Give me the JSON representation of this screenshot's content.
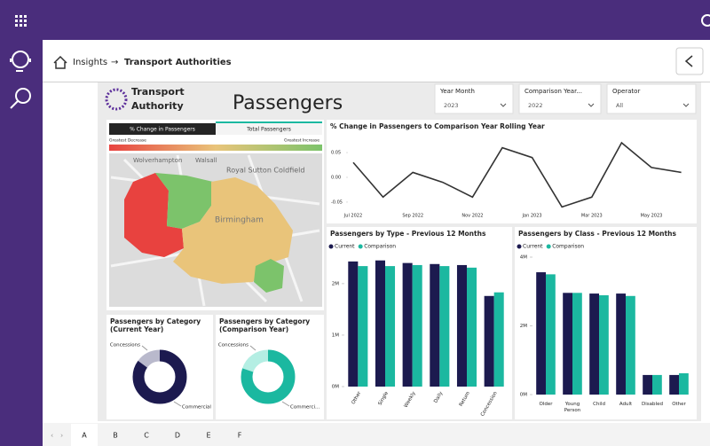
{
  "header": {
    "breadcrumb": [
      "Insights",
      "Transport Authorities"
    ]
  },
  "dashboard": {
    "logo": [
      "Transport",
      "Authority"
    ],
    "title": "Passengers",
    "filters": [
      {
        "label": "Year Month",
        "value": "2023"
      },
      {
        "label": "Comparison Year...",
        "value": "2022"
      },
      {
        "label": "Operator",
        "value": "All"
      }
    ],
    "map": {
      "tabs": [
        "% Change in Passengers",
        "Total Passengers"
      ],
      "legend": [
        "Greatest Decrease",
        "Greatest Increase"
      ],
      "places": [
        "Wolverhampton",
        "Walsall",
        "Royal Sutton Coldfield",
        "Birmingham"
      ]
    }
  },
  "chart_data": [
    {
      "type": "line",
      "title": "% Change in Passengers to Comparison Year Rolling Year",
      "categories": [
        "Jul 2022",
        null,
        "Sep 2022",
        null,
        "Nov 2022",
        null,
        "Jan 2023",
        null,
        "Mar 2023",
        null,
        "May 2023",
        null
      ],
      "values": [
        0.03,
        -0.04,
        0.01,
        -0.01,
        -0.04,
        0.06,
        0.04,
        -0.06,
        -0.04,
        0.07,
        0.02,
        0.01
      ],
      "color": "#333333",
      "ylim": [
        -0.07,
        0.07
      ],
      "yticks": [
        0.05,
        {
          "value": 0,
          "label": "0.00"
        },
        -0.05
      ]
    },
    {
      "type": "bar",
      "title": "Passengers by Type - Previous 12 Months",
      "categories": [
        "Other",
        "Single",
        "Weekly",
        "Daily",
        "Return",
        "Concession"
      ],
      "series": [
        {
          "name": "Current",
          "color": "#1c1a4f",
          "values": [
            2430000,
            2450000,
            2400000,
            2380000,
            2360000,
            1760000
          ]
        },
        {
          "name": "Comparison",
          "color": "#1bb8a0",
          "values": [
            2340000,
            2340000,
            2360000,
            2340000,
            2310000,
            1830000
          ]
        }
      ],
      "ylim": [
        0,
        2600000
      ],
      "yticks": [
        {
          "value": 0,
          "label": "0M"
        },
        {
          "value": 1000000,
          "label": "1M"
        },
        {
          "value": 2000000,
          "label": "2M"
        }
      ]
    },
    {
      "type": "bar",
      "title": "Passengers by Class - Previous 12 Months",
      "categories": [
        "Older",
        "Young Person",
        "Child",
        "Adult",
        "Disabled",
        "Other"
      ],
      "series": [
        {
          "name": "Current",
          "color": "#1c1a4f",
          "values": [
            3560000,
            2960000,
            2940000,
            2940000,
            570000,
            570000
          ]
        },
        {
          "name": "Comparison",
          "color": "#1bb8a0",
          "values": [
            3500000,
            2960000,
            2890000,
            2870000,
            570000,
            620000
          ]
        }
      ],
      "ylim": [
        0,
        4000000
      ],
      "yticks": [
        {
          "value": 0,
          "label": "0M"
        },
        {
          "value": 2000000,
          "label": "2M"
        },
        {
          "value": 4000000,
          "label": "4M"
        }
      ]
    },
    {
      "type": "pie",
      "title": "Passengers by Category (Current Year)",
      "categories": [
        "Concessions",
        "Commercial"
      ],
      "values": [
        15,
        85
      ],
      "colors": [
        "#b9b9cc",
        "#1c1a4f"
      ]
    },
    {
      "type": "pie",
      "title": "Passengers by Category (Comparison Year)",
      "categories": [
        "Concessions",
        "Commerci..."
      ],
      "values": [
        20,
        80
      ],
      "colors": [
        "#b4eee3",
        "#1bb8a0"
      ]
    }
  ],
  "tabs": [
    "A",
    "B",
    "C",
    "D",
    "E",
    "F"
  ]
}
